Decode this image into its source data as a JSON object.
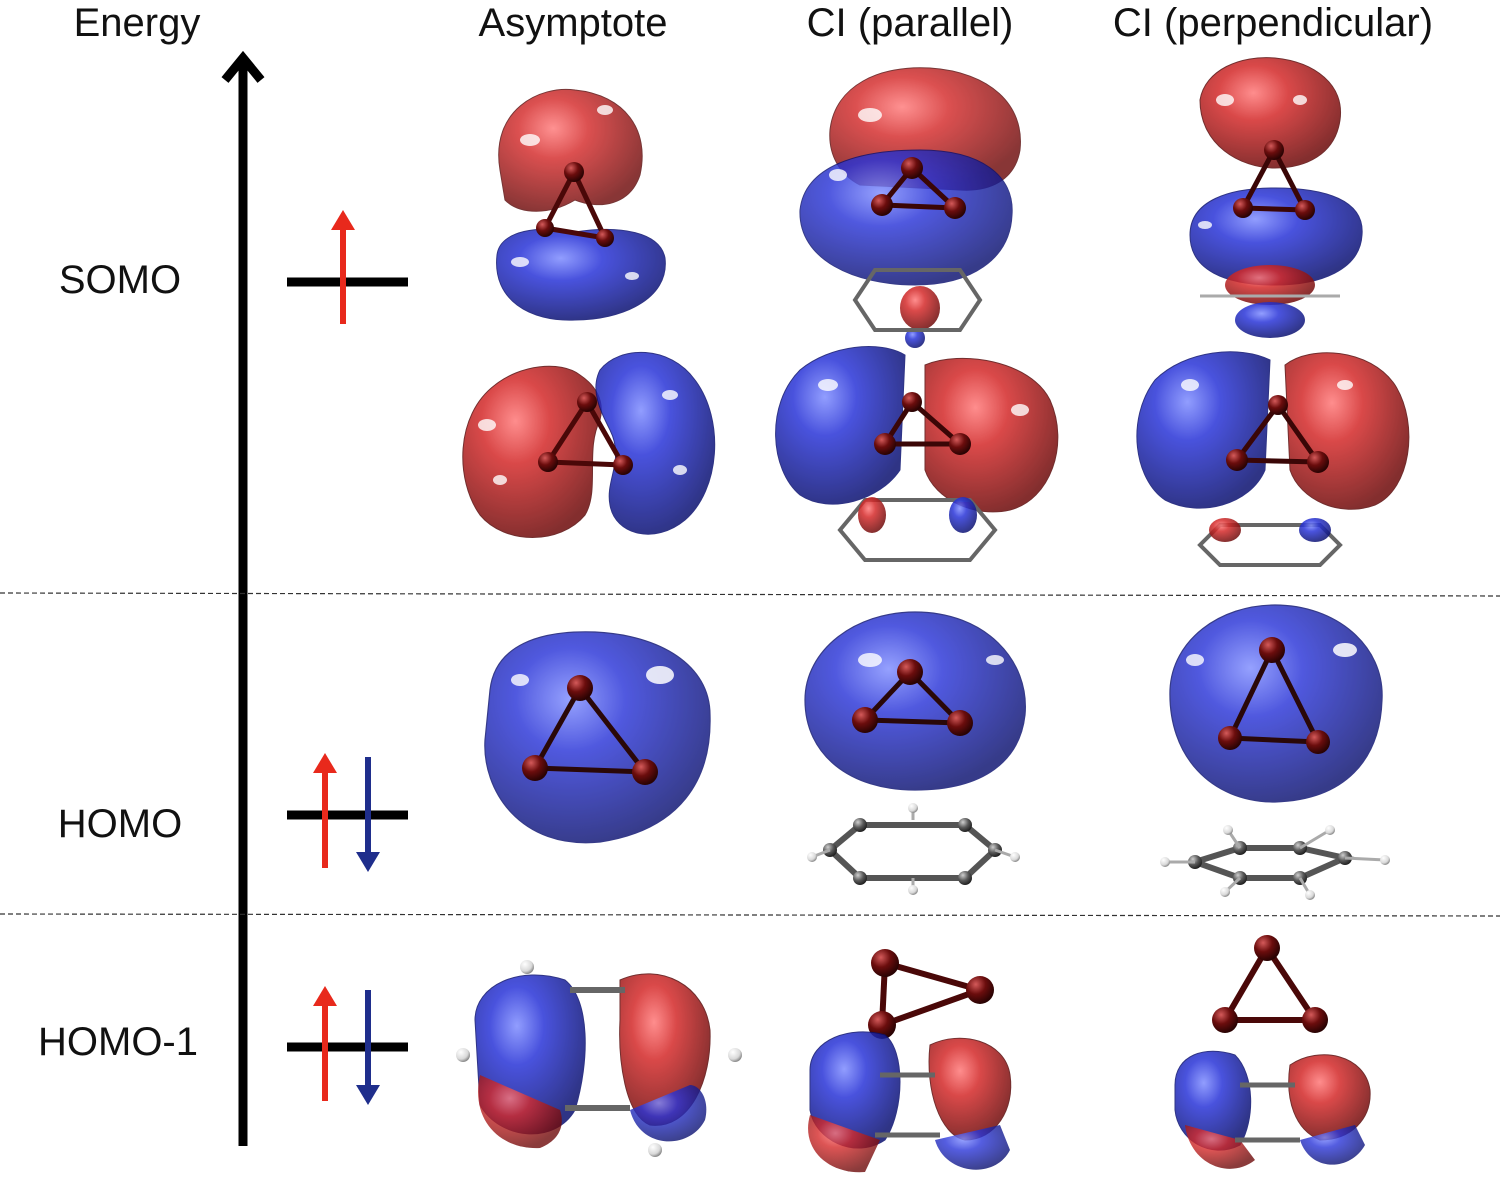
{
  "axis_label": "Energy",
  "columns": [
    "Asymptote",
    "CI (parallel)",
    "CI (perpendicular)"
  ],
  "levels": [
    {
      "label": "SOMO",
      "electrons": "single-up-arrow"
    },
    {
      "label": "HOMO",
      "electrons": "paired-up-down-arrows"
    },
    {
      "label": "HOMO-1",
      "electrons": "paired-up-down-arrows"
    }
  ],
  "colors": {
    "lobe_positive": "#b51515",
    "lobe_negative": "#1c24b8",
    "spin_up_arrow": "#e8291c",
    "spin_down_arrow": "#1f2e8c",
    "level_line": "#000000",
    "atom_metal": "#6b0d0d",
    "atom_carbon": "#5a5a5a",
    "atom_hydrogen": "#e6e6e6"
  },
  "icons": {
    "orbital": "molecular-orbital-isosurface-icon",
    "benzene": "benzene-molecule-icon",
    "trimer": "triatomic-ring-icon"
  }
}
